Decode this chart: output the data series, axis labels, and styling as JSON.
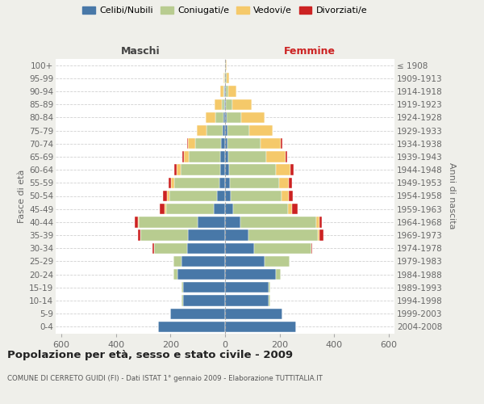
{
  "age_groups": [
    "0-4",
    "5-9",
    "10-14",
    "15-19",
    "20-24",
    "25-29",
    "30-34",
    "35-39",
    "40-44",
    "45-49",
    "50-54",
    "55-59",
    "60-64",
    "65-69",
    "70-74",
    "75-79",
    "80-84",
    "85-89",
    "90-94",
    "95-99",
    "100+"
  ],
  "birth_years": [
    "2004-2008",
    "1999-2003",
    "1994-1998",
    "1989-1993",
    "1984-1988",
    "1979-1983",
    "1974-1978",
    "1969-1973",
    "1964-1968",
    "1959-1963",
    "1954-1958",
    "1949-1953",
    "1944-1948",
    "1939-1943",
    "1934-1938",
    "1929-1933",
    "1924-1928",
    "1919-1923",
    "1914-1918",
    "1909-1913",
    "≤ 1908"
  ],
  "colors": {
    "celibi": "#4878a8",
    "coniugati": "#b8cc90",
    "vedovi": "#f5c96a",
    "divorziati": "#cc2222"
  },
  "males": {
    "celibi": [
      245,
      200,
      155,
      155,
      175,
      160,
      140,
      135,
      100,
      40,
      30,
      22,
      18,
      17,
      15,
      8,
      5,
      3,
      2,
      1,
      0
    ],
    "coniugati": [
      0,
      0,
      5,
      5,
      15,
      30,
      120,
      175,
      215,
      175,
      175,
      165,
      145,
      115,
      95,
      60,
      30,
      10,
      5,
      2,
      0
    ],
    "vedovi": [
      0,
      0,
      0,
      0,
      0,
      0,
      0,
      0,
      5,
      5,
      8,
      10,
      15,
      20,
      25,
      35,
      35,
      25,
      10,
      2,
      0
    ],
    "divorziati": [
      0,
      0,
      0,
      0,
      0,
      0,
      5,
      10,
      10,
      20,
      15,
      10,
      8,
      5,
      5,
      0,
      0,
      0,
      0,
      0,
      0
    ]
  },
  "females": {
    "celibi": [
      260,
      210,
      160,
      160,
      185,
      145,
      105,
      85,
      55,
      30,
      22,
      18,
      15,
      12,
      10,
      8,
      5,
      3,
      2,
      1,
      0
    ],
    "coniugati": [
      0,
      0,
      5,
      5,
      20,
      90,
      210,
      255,
      280,
      200,
      185,
      180,
      170,
      140,
      120,
      80,
      55,
      25,
      10,
      5,
      2
    ],
    "vedovi": [
      0,
      0,
      0,
      0,
      0,
      0,
      0,
      5,
      10,
      15,
      25,
      35,
      55,
      70,
      75,
      85,
      85,
      70,
      30,
      10,
      5
    ],
    "divorziati": [
      0,
      0,
      0,
      0,
      0,
      0,
      5,
      15,
      10,
      20,
      15,
      12,
      10,
      5,
      5,
      0,
      0,
      0,
      0,
      0,
      0
    ]
  },
  "xlim": 620,
  "xticks": [
    -600,
    -400,
    -200,
    0,
    200,
    400,
    600
  ],
  "title": "Popolazione per età, sesso e stato civile - 2009",
  "subtitle": "COMUNE DI CERRETO GUIDI (FI) - Dati ISTAT 1° gennaio 2009 - Elaborazione TUTTITALIA.IT",
  "ylabel_left": "Fasce di età",
  "ylabel_right": "Anni di nascita",
  "xlabel_left": "Maschi",
  "xlabel_right": "Femmine",
  "bg_color": "#efefea",
  "plot_bg": "#ffffff",
  "grid_color": "#cccccc",
  "legend_labels": [
    "Celibi/Nubili",
    "Coniugati/e",
    "Vedovi/e",
    "Divorziati/e"
  ]
}
